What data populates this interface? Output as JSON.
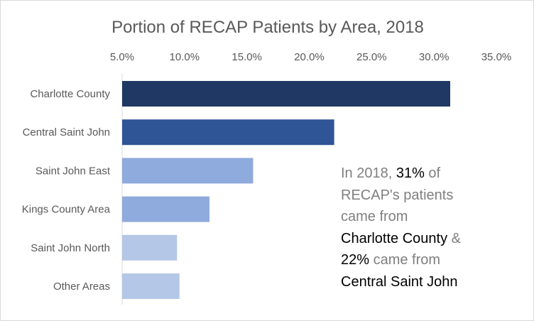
{
  "chart_data": {
    "type": "bar",
    "orientation": "horizontal",
    "title": "Portion of RECAP Patients by Area, 2018",
    "xlabel": "",
    "ylabel": "",
    "xlim": [
      0.05,
      0.35
    ],
    "x_axis_position": "top",
    "grid": false,
    "legend": "none",
    "x_ticks": [
      "5.0%",
      "10.0%",
      "15.0%",
      "20.0%",
      "25.0%",
      "30.0%",
      "35.0%"
    ],
    "categories": [
      "Charlotte County",
      "Central Saint John",
      "Saint John East",
      "Kings County Area",
      "Saint John North",
      "Other Areas"
    ],
    "values": [
      0.313,
      0.22,
      0.155,
      0.12,
      0.094,
      0.096
    ],
    "colors": [
      "#203864",
      "#2f5597",
      "#8faadc",
      "#8faadc",
      "#b4c7e7",
      "#b4c7e7"
    ]
  },
  "annotation": {
    "line1_a": "In 2018, ",
    "line1_b": "31%",
    "line1_c": " of",
    "line2": "RECAP's patients",
    "line3": "came from",
    "line4_a": "Charlotte County",
    "line4_b": " &",
    "line5_a": "22%",
    "line5_b": " came from",
    "line6": "Central Saint John"
  },
  "colors": {
    "axis": "#d9d9d9",
    "text": "#595959",
    "annotation_text": "#7f7f7f",
    "highlight": "#000000"
  }
}
